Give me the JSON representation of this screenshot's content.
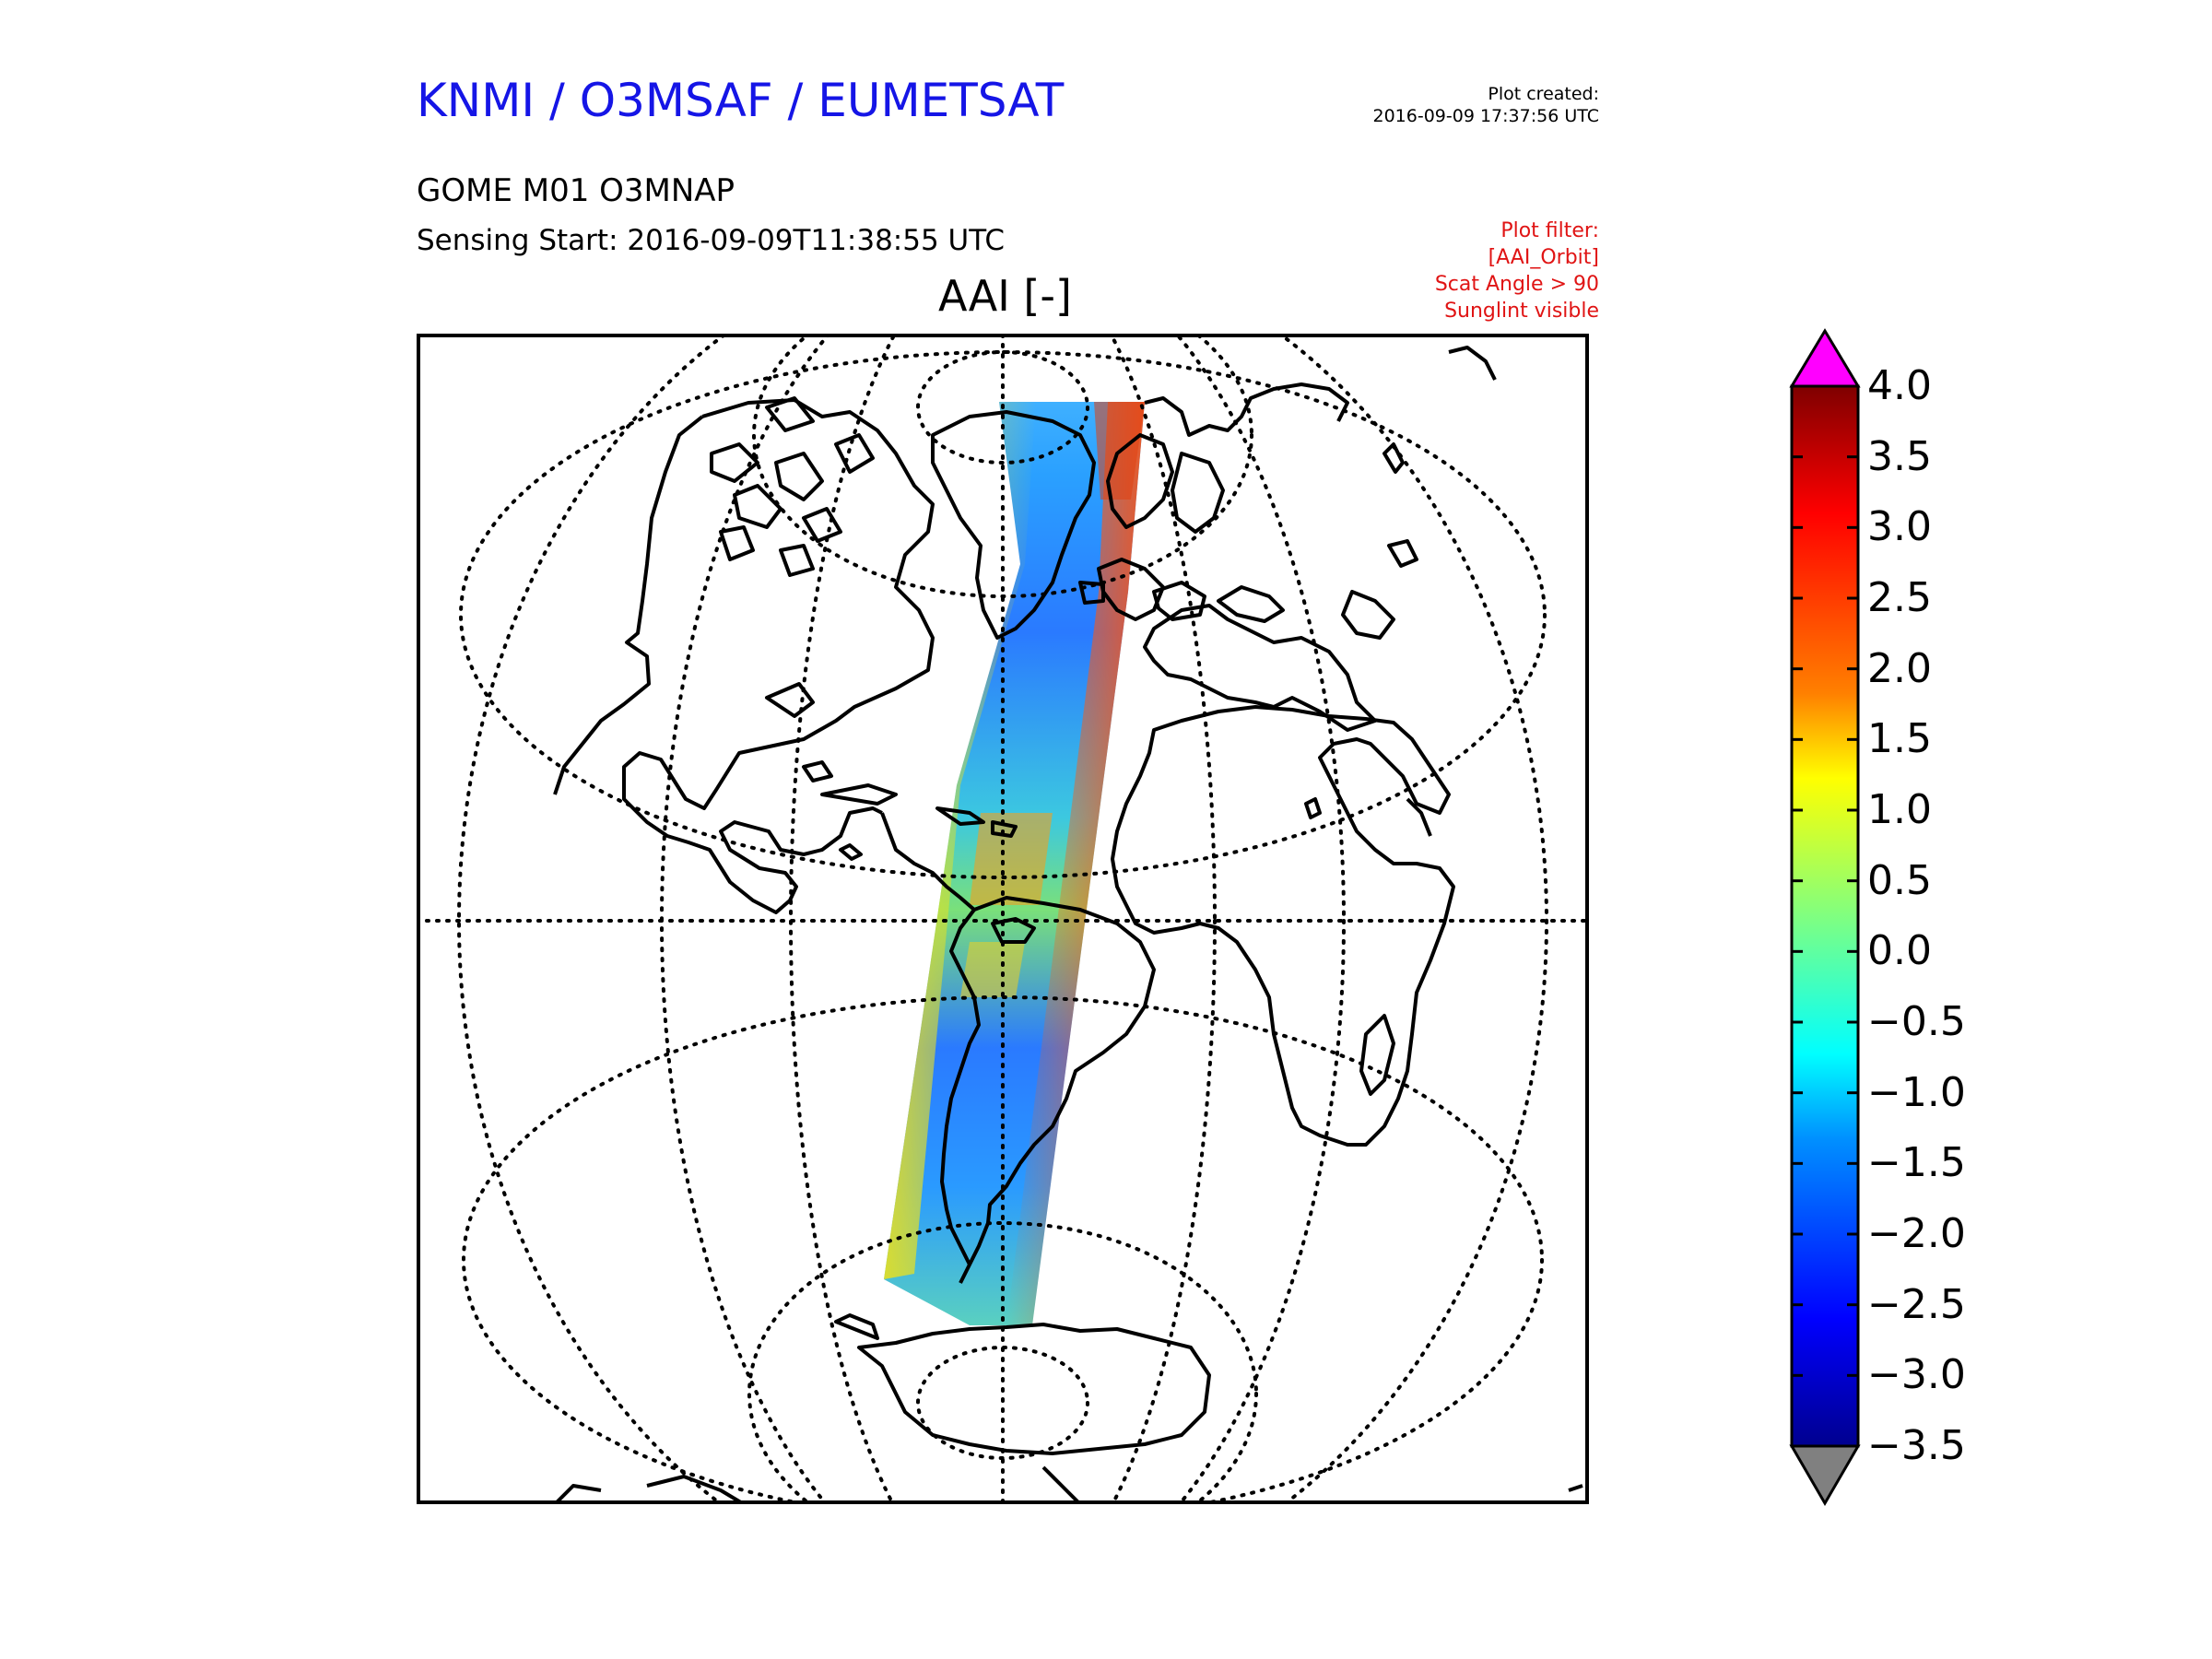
{
  "header": {
    "title": "KNMI / O3MSAF / EUMETSAT",
    "title_color": "#1515e6",
    "plot_created_label": "Plot created:",
    "plot_created_value": "2016-09-09 17:37:56 UTC",
    "product": "GOME M01 O3MNAP",
    "sensing_start": "Sensing Start: 2016-09-09T11:38:55 UTC",
    "filter_color": "#e01414",
    "filter_lines": [
      "Plot filter:",
      "[AAI_Orbit]",
      "Scat Angle > 90",
      "Sunglint visible"
    ]
  },
  "map": {
    "title": "AAI [-]",
    "projection": "orthographic",
    "graticule": "dotted",
    "swath_colors_scale": "jet"
  },
  "colorbar": {
    "ticks": [
      "4.0",
      "3.5",
      "3.0",
      "2.5",
      "2.0",
      "1.5",
      "1.0",
      "0.5",
      "0.0",
      "−0.5",
      "−1.0",
      "−1.5",
      "−2.0",
      "−2.5",
      "−3.0",
      "−3.5"
    ],
    "max": 4.0,
    "min": -3.5,
    "over_color": "#ff00ff",
    "under_color": "#808080",
    "stops": [
      "#800000",
      "#ff0000",
      "#ff8000",
      "#ffff00",
      "#80ff80",
      "#00ffff",
      "#0080ff",
      "#0000ff",
      "#00008f"
    ]
  }
}
